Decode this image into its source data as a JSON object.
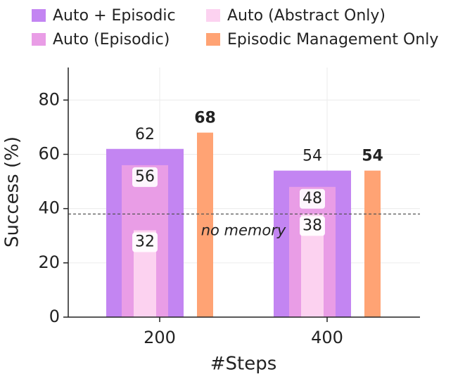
{
  "chart_data": {
    "type": "overlap_bar",
    "x_label": "#Steps",
    "y_label": "Success (%)",
    "categories": [
      "200",
      "400"
    ],
    "series": [
      {
        "name": "Auto + Episodic",
        "color": "#c385f2",
        "values": [
          62,
          54
        ],
        "width": "wide",
        "label_inside": false,
        "label_bold": false
      },
      {
        "name": "Auto (Episodic)",
        "color": "#e99de6",
        "values": [
          56,
          48
        ],
        "width": "medium",
        "label_inside": true,
        "label_bold": false
      },
      {
        "name": "Auto (Abstract Only)",
        "color": "#fcd2f0",
        "values": [
          32,
          38
        ],
        "width": "narrow",
        "label_inside": true,
        "label_bold": false
      },
      {
        "name": "Episodic Management Only",
        "color": "#ffa374",
        "values": [
          68,
          54
        ],
        "width": "side",
        "label_inside": false,
        "label_bold": true
      }
    ],
    "baseline": {
      "value": 38,
      "label": "no memory"
    },
    "ylim": [
      0,
      92
    ],
    "yticks": [
      0,
      20,
      40,
      60,
      80
    ],
    "grid": true
  }
}
